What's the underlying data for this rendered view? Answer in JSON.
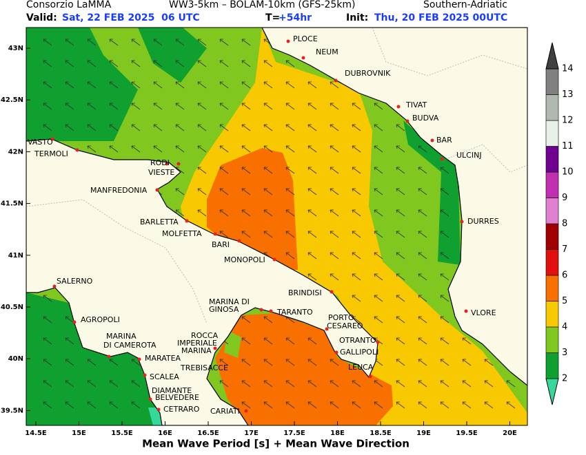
{
  "header": {
    "org": "Consorzio LaMMA",
    "model": "WW3-5km – BOLAM-10km (GFS-25km)",
    "region": "Southern-Adriatic",
    "valid_label": "Valid:",
    "valid": "Sat, 22 FEB 2025  06 UTC",
    "t_label": "T=",
    "t": "+54hr",
    "init_label": "Init:",
    "init": "Thu, 20 FEB 2025 00UTC"
  },
  "lat_ticks": [
    "43N",
    "42.5N",
    "42N",
    "41.5N",
    "41N",
    "40.5N",
    "40N",
    "39.5N"
  ],
  "lon_ticks": [
    "14.5E",
    "15E",
    "15.5E",
    "16E",
    "16.5E",
    "17E",
    "17.5E",
    "18E",
    "18.5E",
    "19E",
    "19.5E",
    "20E"
  ],
  "cities": [
    "PLOCE",
    "NEUM",
    "DUBROVNIK",
    "TIVAT",
    "BUDVA",
    "BAR",
    "ULCINJ",
    "DURRES",
    "VLORE",
    "VASTO",
    "TERMOLI",
    "RODI",
    "VIESTE",
    "MANFREDONIA",
    "BARLETTA",
    "MOLFETTA",
    "BARI",
    "MONOPOLI",
    "BRINDISI",
    "SALERNO",
    "AGROPOLI",
    "MARINA DI",
    "GINOSA",
    "TARANTO",
    "PORTO",
    "CESAREO",
    "OTRANTO",
    "GALLIPOLI",
    "LEUCA",
    "MARINA",
    "DI CAMEROTA",
    "ROCCA",
    "IMPERIALE",
    "MARINA",
    "MARATEA",
    "TREBISACCE",
    "SCALEA",
    "DIAMANTE",
    "BELVEDERE",
    "CETRARO",
    "CARIATI"
  ],
  "colorbar": {
    "ticks": [
      2,
      3,
      4,
      5,
      6,
      7,
      8,
      9,
      10,
      11,
      12,
      13,
      14
    ],
    "colors": [
      "#34d89a",
      "#10a030",
      "#80c820",
      "#f8c800",
      "#f87000",
      "#e01010",
      "#a00000",
      "#e080d0",
      "#c030b0",
      "#700090",
      "#e8f0e8",
      "#b0b8b0",
      "#808080",
      "#404040"
    ]
  },
  "footer": "Mean Wave Period [s] + Mean Wave Direction"
}
